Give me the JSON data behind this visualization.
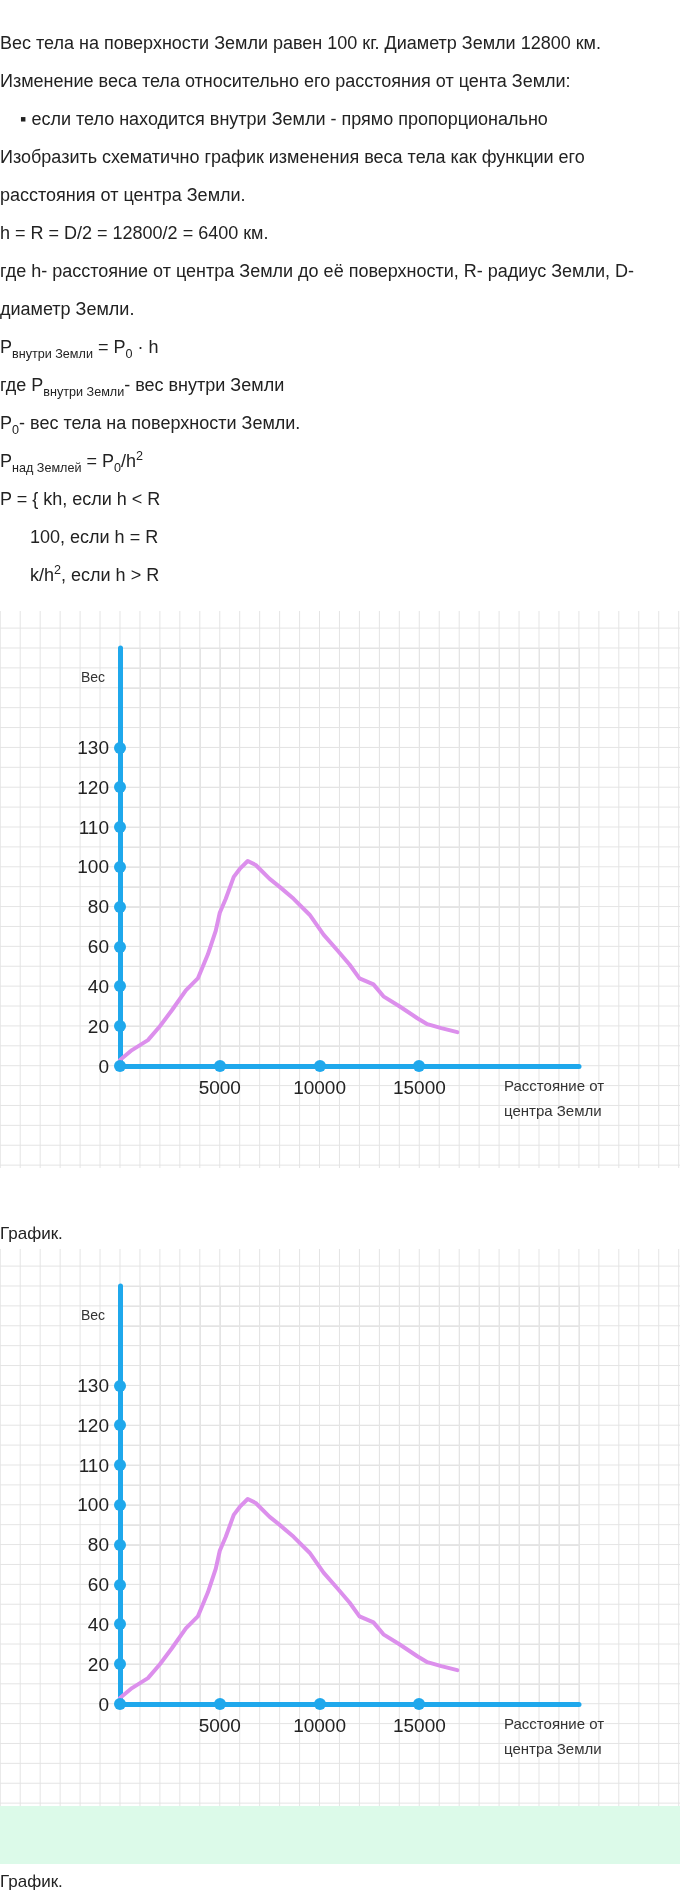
{
  "chart_data": [
    {
      "type": "line",
      "subtitle": "Вес тела на поверхности Земли равен 100 кг. Диаметр Земли 12800 км.\nИзменение веса тела относительно его расстояния от цента Земли:\n    ▪ если тело находится внутри Земли - прямо пропорционально\nИзобразить схематично график изменения веса тела как функции его расстояния от центра Земли.\nh = R = D/2 = 12800/2 = 6400 км.\nгде h- расстояние от центра Земли до её поверхности, R- радиус Земли, D- диаметр Земли.\nP$_{внутри Земли}$ = P$_{0}$ · h\nгде P$_{внутри Земли}$- вес внутри Земли\nP$_{0}$- вес тела на поверхности Земли.\nP$_{над Землей}$ = P$_{0}$/h$^{2}$\nP = { kh, если h < R\n      100, если h = R\n      k/h$^{2}$, если h > R",
      "xlabel": "Расстояние от центра Земли",
      "y2label": "Вес",
      "x": [
        0,
        600,
        1400,
        2000,
        2600,
        3300,
        3900,
        4400,
        4800,
        5000,
        5300,
        5700,
        6000,
        6400,
        6800,
        7500,
        8000,
        8700,
        9500,
        10200,
        10900,
        11500,
        12000,
        12700,
        13200,
        14000,
        14900,
        15400,
        16100,
        16900
      ],
      "values": [
        3,
        8,
        13,
        20,
        28,
        38,
        44,
        56,
        68,
        77,
        84,
        95,
        99,
        103,
        101,
        94,
        90,
        84,
        76,
        66,
        58,
        51,
        44,
        41,
        35,
        30,
        24,
        21,
        19,
        17
      ],
      "color": "#dc8fec",
      "xlim": [
        0,
        23000
      ],
      "xticks": [
        {
          "value": 0,
          "label": null
        },
        5000,
        10000,
        15000
      ],
      "ylim": [
        0,
        210
      ],
      "yticks": [
        0,
        20,
        40,
        60,
        80,
        100
      ],
      "y2lim": [
        50,
        155
      ],
      "y2ticks": [
        110,
        120,
        130
      ],
      "grid": true,
      "annotations": [
        "График."
      ]
    },
    {
      "type": "line",
      "xlabel": "Расстояние от центра Земли",
      "y2label": "Вес",
      "x": [
        0,
        600,
        1400,
        2000,
        2600,
        3300,
        3900,
        4400,
        4800,
        5000,
        5300,
        5700,
        6000,
        6400,
        6800,
        7500,
        8000,
        8700,
        9500,
        10200,
        10900,
        11500,
        12000,
        12700,
        13200,
        14000,
        14900,
        15400,
        16100,
        16900
      ],
      "values": [
        3,
        8,
        13,
        20,
        28,
        38,
        44,
        56,
        68,
        77,
        84,
        95,
        99,
        103,
        101,
        94,
        90,
        84,
        76,
        66,
        58,
        51,
        44,
        41,
        35,
        30,
        24,
        21,
        19,
        17
      ],
      "color": "#dc8fec",
      "xlim": [
        0,
        23000
      ],
      "xticks": [
        {
          "value": 0,
          "label": null
        },
        5000,
        10000,
        15000
      ],
      "ylim": [
        0,
        210
      ],
      "yticks": [
        0,
        20,
        40,
        60,
        80,
        100
      ],
      "y2lim": [
        50,
        155
      ],
      "y2ticks": [
        110,
        120,
        130
      ],
      "grid": true,
      "annotations": [
        "График."
      ]
    }
  ]
}
